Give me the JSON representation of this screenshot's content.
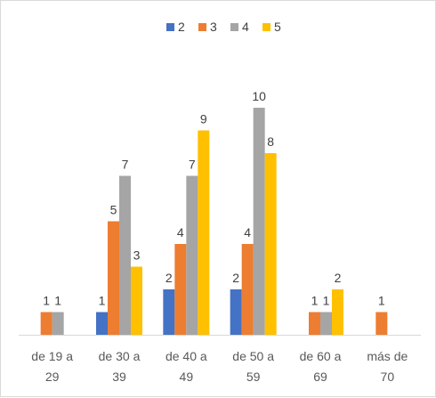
{
  "chart_data": {
    "type": "bar",
    "title": "",
    "xlabel": "",
    "ylabel": "",
    "ylim": [
      0,
      10
    ],
    "grid": false,
    "legend_position": "top",
    "categories": [
      [
        "de 19 a",
        "29"
      ],
      [
        "de 30 a",
        "39"
      ],
      [
        "de 40 a",
        "49"
      ],
      [
        "de 50 a",
        "59"
      ],
      [
        "de 60 a",
        "69"
      ],
      [
        "más de",
        "70"
      ]
    ],
    "series": [
      {
        "name": "2",
        "color": "#4472c4",
        "values": [
          null,
          1,
          2,
          2,
          null,
          null
        ]
      },
      {
        "name": "3",
        "color": "#ed7d31",
        "values": [
          1,
          5,
          4,
          4,
          1,
          1
        ]
      },
      {
        "name": "4",
        "color": "#a5a5a5",
        "values": [
          1,
          7,
          7,
          10,
          1,
          null
        ]
      },
      {
        "name": "5",
        "color": "#ffc000",
        "values": [
          null,
          3,
          9,
          8,
          2,
          null
        ]
      }
    ]
  }
}
